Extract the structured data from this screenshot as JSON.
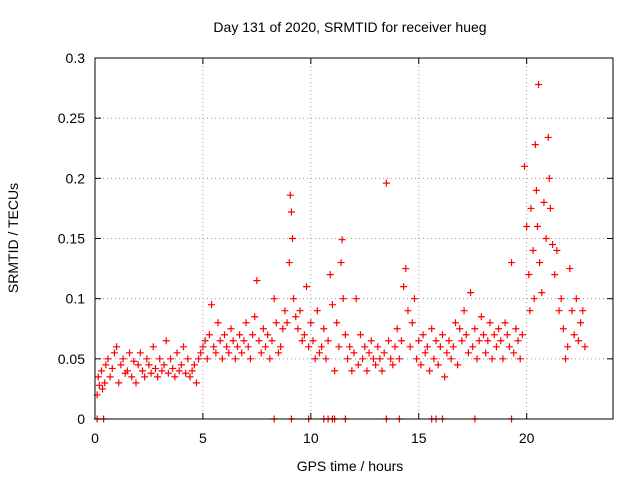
{
  "chart_data": {
    "type": "scatter",
    "title": "Day 131 of 2020, SRMTID for receiver hueg",
    "xlabel": "GPS time / hours",
    "ylabel": "SRMTID / TECUs",
    "xlim": [
      0,
      24
    ],
    "ylim": [
      0,
      0.3
    ],
    "grid": true,
    "marker": "+",
    "xticks": [
      0,
      5,
      10,
      15,
      20
    ],
    "xtick_labels": [
      "0",
      "5",
      "10",
      "15",
      "20"
    ],
    "yticks": [
      0,
      0.05,
      0.1,
      0.15,
      0.2,
      0.25,
      0.3
    ],
    "ytick_labels": [
      "0",
      "0.05",
      "0.1",
      "0.15",
      "0.2",
      "0.25",
      "0.3"
    ],
    "series": [
      {
        "name": "SRMTID",
        "color": "#ff0000",
        "points": [
          [
            0.1,
            0.02
          ],
          [
            0.15,
            0.035
          ],
          [
            0.2,
            0.028
          ],
          [
            0.3,
            0.04
          ],
          [
            0.35,
            0.025
          ],
          [
            0.45,
            0.03
          ],
          [
            0.5,
            0.045
          ],
          [
            0.6,
            0.05
          ],
          [
            0.7,
            0.035
          ],
          [
            0.8,
            0.042
          ],
          [
            0.9,
            0.055
          ],
          [
            1.0,
            0.06
          ],
          [
            1.1,
            0.03
          ],
          [
            1.2,
            0.045
          ],
          [
            1.3,
            0.05
          ],
          [
            1.4,
            0.038
          ],
          [
            1.5,
            0.04
          ],
          [
            1.6,
            0.055
          ],
          [
            1.7,
            0.035
          ],
          [
            1.8,
            0.048
          ],
          [
            1.9,
            0.03
          ],
          [
            2.0,
            0.045
          ],
          [
            2.1,
            0.055
          ],
          [
            2.2,
            0.04
          ],
          [
            2.3,
            0.035
          ],
          [
            2.4,
            0.05
          ],
          [
            2.5,
            0.045
          ],
          [
            2.6,
            0.038
          ],
          [
            2.7,
            0.06
          ],
          [
            2.8,
            0.042
          ],
          [
            2.9,
            0.035
          ],
          [
            3.0,
            0.05
          ],
          [
            3.1,
            0.04
          ],
          [
            3.2,
            0.045
          ],
          [
            3.3,
            0.065
          ],
          [
            3.4,
            0.038
          ],
          [
            3.5,
            0.05
          ],
          [
            3.6,
            0.042
          ],
          [
            3.7,
            0.035
          ],
          [
            3.8,
            0.055
          ],
          [
            3.9,
            0.04
          ],
          [
            4.0,
            0.045
          ],
          [
            4.1,
            0.06
          ],
          [
            4.2,
            0.038
          ],
          [
            4.3,
            0.05
          ],
          [
            4.4,
            0.035
          ],
          [
            4.5,
            0.04
          ],
          [
            4.6,
            0.045
          ],
          [
            4.7,
            0.03
          ],
          [
            4.8,
            0.05
          ],
          [
            4.9,
            0.055
          ],
          [
            5.0,
            0.06
          ],
          [
            5.1,
            0.065
          ],
          [
            5.2,
            0.05
          ],
          [
            5.3,
            0.07
          ],
          [
            5.4,
            0.095
          ],
          [
            5.5,
            0.06
          ],
          [
            5.6,
            0.055
          ],
          [
            5.7,
            0.08
          ],
          [
            5.8,
            0.065
          ],
          [
            5.9,
            0.05
          ],
          [
            6.0,
            0.07
          ],
          [
            6.1,
            0.06
          ],
          [
            6.2,
            0.055
          ],
          [
            6.3,
            0.075
          ],
          [
            6.4,
            0.065
          ],
          [
            6.5,
            0.05
          ],
          [
            6.6,
            0.06
          ],
          [
            6.7,
            0.07
          ],
          [
            6.8,
            0.055
          ],
          [
            6.9,
            0.065
          ],
          [
            7.0,
            0.08
          ],
          [
            7.1,
            0.06
          ],
          [
            7.2,
            0.05
          ],
          [
            7.3,
            0.07
          ],
          [
            7.4,
            0.085
          ],
          [
            7.5,
            0.115
          ],
          [
            7.6,
            0.065
          ],
          [
            7.7,
            0.055
          ],
          [
            7.8,
            0.075
          ],
          [
            7.9,
            0.06
          ],
          [
            8.0,
            0.07
          ],
          [
            8.1,
            0.05
          ],
          [
            8.2,
            0.065
          ],
          [
            8.3,
            0.1
          ],
          [
            8.4,
            0.08
          ],
          [
            8.5,
            0.055
          ],
          [
            8.6,
            0.06
          ],
          [
            8.7,
            0.075
          ],
          [
            8.8,
            0.09
          ],
          [
            8.9,
            0.08
          ],
          [
            9.0,
            0.13
          ],
          [
            9.05,
            0.186
          ],
          [
            9.1,
            0.172
          ],
          [
            9.15,
            0.15
          ],
          [
            9.2,
            0.1
          ],
          [
            9.3,
            0.085
          ],
          [
            9.4,
            0.075
          ],
          [
            9.5,
            0.09
          ],
          [
            9.6,
            0.065
          ],
          [
            9.7,
            0.07
          ],
          [
            9.8,
            0.11
          ],
          [
            9.9,
            0.06
          ],
          [
            10.0,
            0.08
          ],
          [
            10.1,
            0.065
          ],
          [
            10.2,
            0.05
          ],
          [
            10.3,
            0.09
          ],
          [
            10.4,
            0.055
          ],
          [
            10.5,
            0.06
          ],
          [
            10.6,
            0.075
          ],
          [
            10.7,
            0.05
          ],
          [
            10.8,
            0.065
          ],
          [
            10.9,
            0.12
          ],
          [
            11.0,
            0.095
          ],
          [
            11.1,
            0.04
          ],
          [
            11.2,
            0.08
          ],
          [
            11.3,
            0.06
          ],
          [
            11.4,
            0.13
          ],
          [
            11.45,
            0.149
          ],
          [
            11.5,
            0.1
          ],
          [
            11.6,
            0.07
          ],
          [
            11.7,
            0.05
          ],
          [
            11.8,
            0.06
          ],
          [
            11.9,
            0.04
          ],
          [
            12.0,
            0.055
          ],
          [
            12.1,
            0.1
          ],
          [
            12.2,
            0.045
          ],
          [
            12.3,
            0.07
          ],
          [
            12.4,
            0.05
          ],
          [
            12.5,
            0.06
          ],
          [
            12.6,
            0.04
          ],
          [
            12.7,
            0.055
          ],
          [
            12.8,
            0.065
          ],
          [
            12.9,
            0.05
          ],
          [
            13.0,
            0.045
          ],
          [
            13.1,
            0.06
          ],
          [
            13.2,
            0.05
          ],
          [
            13.3,
            0.04
          ],
          [
            13.4,
            0.055
          ],
          [
            13.5,
            0.196
          ],
          [
            13.6,
            0.065
          ],
          [
            13.7,
            0.05
          ],
          [
            13.8,
            0.045
          ],
          [
            13.9,
            0.06
          ],
          [
            14.0,
            0.075
          ],
          [
            14.1,
            0.05
          ],
          [
            14.2,
            0.065
          ],
          [
            14.3,
            0.11
          ],
          [
            14.4,
            0.125
          ],
          [
            14.5,
            0.09
          ],
          [
            14.6,
            0.06
          ],
          [
            14.7,
            0.08
          ],
          [
            14.8,
            0.1
          ],
          [
            14.9,
            0.05
          ],
          [
            15.0,
            0.065
          ],
          [
            15.1,
            0.045
          ],
          [
            15.2,
            0.07
          ],
          [
            15.3,
            0.055
          ],
          [
            15.4,
            0.06
          ],
          [
            15.5,
            0.04
          ],
          [
            15.6,
            0.075
          ],
          [
            15.7,
            0.05
          ],
          [
            15.8,
            0.065
          ],
          [
            15.9,
            0.045
          ],
          [
            16.0,
            0.06
          ],
          [
            16.1,
            0.07
          ],
          [
            16.2,
            0.035
          ],
          [
            16.3,
            0.055
          ],
          [
            16.4,
            0.065
          ],
          [
            16.5,
            0.05
          ],
          [
            16.6,
            0.06
          ],
          [
            16.7,
            0.08
          ],
          [
            16.8,
            0.045
          ],
          [
            16.9,
            0.075
          ],
          [
            17.0,
            0.065
          ],
          [
            17.1,
            0.09
          ],
          [
            17.2,
            0.07
          ],
          [
            17.3,
            0.055
          ],
          [
            17.4,
            0.105
          ],
          [
            17.5,
            0.06
          ],
          [
            17.6,
            0.075
          ],
          [
            17.7,
            0.05
          ],
          [
            17.8,
            0.065
          ],
          [
            17.9,
            0.085
          ],
          [
            18.0,
            0.07
          ],
          [
            18.1,
            0.055
          ],
          [
            18.2,
            0.065
          ],
          [
            18.3,
            0.08
          ],
          [
            18.4,
            0.05
          ],
          [
            18.5,
            0.07
          ],
          [
            18.6,
            0.06
          ],
          [
            18.7,
            0.075
          ],
          [
            18.8,
            0.065
          ],
          [
            18.9,
            0.05
          ],
          [
            19.0,
            0.08
          ],
          [
            19.1,
            0.07
          ],
          [
            19.2,
            0.06
          ],
          [
            19.3,
            0.13
          ],
          [
            19.4,
            0.055
          ],
          [
            19.5,
            0.075
          ],
          [
            19.6,
            0.065
          ],
          [
            19.7,
            0.05
          ],
          [
            19.8,
            0.07
          ],
          [
            19.9,
            0.21
          ],
          [
            20.0,
            0.16
          ],
          [
            20.1,
            0.12
          ],
          [
            20.15,
            0.09
          ],
          [
            20.2,
            0.175
          ],
          [
            20.3,
            0.14
          ],
          [
            20.35,
            0.1
          ],
          [
            20.4,
            0.228
          ],
          [
            20.45,
            0.19
          ],
          [
            20.5,
            0.16
          ],
          [
            20.55,
            0.278
          ],
          [
            20.6,
            0.13
          ],
          [
            20.7,
            0.105
          ],
          [
            20.8,
            0.18
          ],
          [
            20.9,
            0.15
          ],
          [
            21.0,
            0.234
          ],
          [
            21.05,
            0.2
          ],
          [
            21.1,
            0.175
          ],
          [
            21.2,
            0.145
          ],
          [
            21.3,
            0.12
          ],
          [
            21.4,
            0.14
          ],
          [
            21.5,
            0.09
          ],
          [
            21.6,
            0.1
          ],
          [
            21.7,
            0.075
          ],
          [
            21.8,
            0.05
          ],
          [
            21.9,
            0.06
          ],
          [
            22.0,
            0.125
          ],
          [
            22.1,
            0.09
          ],
          [
            22.2,
            0.07
          ],
          [
            22.3,
            0.1
          ],
          [
            22.4,
            0.065
          ],
          [
            22.5,
            0.08
          ],
          [
            22.6,
            0.09
          ],
          [
            22.7,
            0.06
          ],
          [
            0.1,
            0
          ],
          [
            0.4,
            0
          ],
          [
            8.3,
            0
          ],
          [
            9.1,
            0
          ],
          [
            9.9,
            0
          ],
          [
            10.6,
            0
          ],
          [
            10.8,
            0
          ],
          [
            11.0,
            0
          ],
          [
            11.1,
            0
          ],
          [
            11.6,
            0
          ],
          [
            13.5,
            0
          ],
          [
            14.1,
            0
          ],
          [
            15.6,
            0
          ],
          [
            15.8,
            0
          ],
          [
            16.1,
            0
          ],
          [
            17.6,
            0
          ],
          [
            19.3,
            0
          ]
        ]
      }
    ]
  }
}
